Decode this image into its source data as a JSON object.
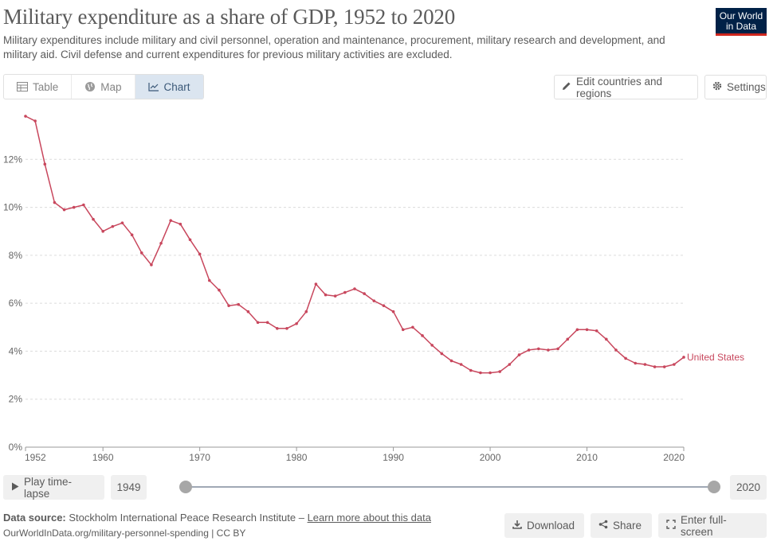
{
  "header": {
    "title": "Military expenditure as a share of GDP, 1952 to 2020",
    "subtitle": "Military expenditures include military and civil personnel, operation and maintenance, procurement, military research and development, and military aid. Civil defense and current expenditures for previous military activities are excluded.",
    "logo_line1": "Our World",
    "logo_line2": "in Data"
  },
  "tabs": [
    {
      "label": "Table",
      "icon": "table-icon"
    },
    {
      "label": "Map",
      "icon": "globe-icon"
    },
    {
      "label": "Chart",
      "icon": "line-chart-icon",
      "active": true
    }
  ],
  "controls": {
    "edit_label": "Edit countries and regions",
    "settings_label": "Settings"
  },
  "timeline": {
    "play_label": "Play time-lapse",
    "start_year": "1949",
    "end_year": "2020",
    "start_value": 1949,
    "end_value": 2020
  },
  "footer": {
    "source_label": "Data source:",
    "source_text": "Stockholm International Peace Research Institute –",
    "learn_more": "Learn more about this data",
    "url_text": "OurWorldInData.org/military-personnel-spending | CC BY",
    "download_label": "Download",
    "share_label": "Share",
    "fullscreen_label": "Enter full-screen"
  },
  "colors": {
    "series": "#c8475d",
    "logo_bg": "#002147",
    "logo_bar": "#ce261e",
    "active_tab": "#dbe5f0"
  },
  "chart_data": {
    "type": "line",
    "title": "",
    "xlabel": "",
    "ylabel": "",
    "xlim": [
      1952,
      2020
    ],
    "ylim": [
      0,
      14
    ],
    "y_ticks": [
      0,
      2,
      4,
      6,
      8,
      10,
      12
    ],
    "y_tick_labels": [
      "0%",
      "2%",
      "4%",
      "6%",
      "8%",
      "10%",
      "12%"
    ],
    "x_ticks": [
      1952,
      1960,
      1970,
      1980,
      1990,
      2000,
      2010,
      2020
    ],
    "x_tick_labels": [
      "1952",
      "1960",
      "1970",
      "1980",
      "1990",
      "2000",
      "2010",
      "2020"
    ],
    "grid": "horizontal dotted",
    "series": [
      {
        "name": "United States",
        "color": "#c8475d",
        "x": [
          1952,
          1953,
          1954,
          1955,
          1956,
          1957,
          1958,
          1959,
          1960,
          1961,
          1962,
          1963,
          1964,
          1965,
          1966,
          1967,
          1968,
          1969,
          1970,
          1971,
          1972,
          1973,
          1974,
          1975,
          1976,
          1977,
          1978,
          1979,
          1980,
          1981,
          1982,
          1983,
          1984,
          1985,
          1986,
          1987,
          1988,
          1989,
          1990,
          1991,
          1992,
          1993,
          1994,
          1995,
          1996,
          1997,
          1998,
          1999,
          2000,
          2001,
          2002,
          2003,
          2004,
          2005,
          2006,
          2007,
          2008,
          2009,
          2010,
          2011,
          2012,
          2013,
          2014,
          2015,
          2016,
          2017,
          2018,
          2019,
          2020
        ],
        "values": [
          13.8,
          13.6,
          11.8,
          10.2,
          9.9,
          10.0,
          10.1,
          9.5,
          9.0,
          9.2,
          9.35,
          8.85,
          8.1,
          7.6,
          8.5,
          9.45,
          9.3,
          8.65,
          8.05,
          6.95,
          6.55,
          5.9,
          5.95,
          5.65,
          5.2,
          5.2,
          4.95,
          4.95,
          5.15,
          5.65,
          6.8,
          6.35,
          6.3,
          6.45,
          6.6,
          6.4,
          6.1,
          5.9,
          5.65,
          4.9,
          5.0,
          4.65,
          4.25,
          3.9,
          3.6,
          3.45,
          3.2,
          3.1,
          3.1,
          3.15,
          3.45,
          3.85,
          4.05,
          4.1,
          4.05,
          4.1,
          4.5,
          4.9,
          4.9,
          4.85,
          4.5,
          4.05,
          3.7,
          3.5,
          3.45,
          3.35,
          3.35,
          3.45,
          3.75
        ]
      }
    ]
  }
}
